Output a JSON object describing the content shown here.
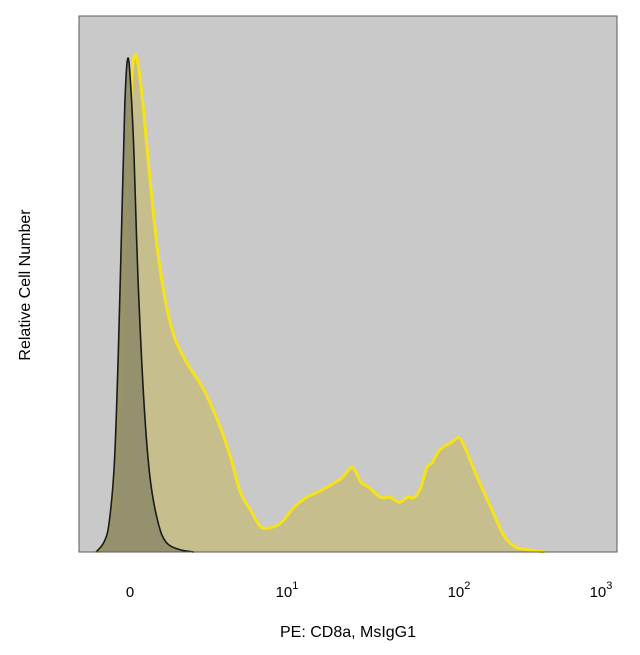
{
  "chart_data": {
    "type": "area",
    "xlabel": "PE: CD8a, MsIgG1",
    "ylabel": "Relative Cell Number",
    "x_scale": "biexponential (linear near 0, log above)",
    "x_ticks": [
      {
        "value": 0,
        "base": "0",
        "exp": ""
      },
      {
        "value": 10,
        "base": "10",
        "exp": "1"
      },
      {
        "value": 100,
        "base": "10",
        "exp": "2"
      },
      {
        "value": 1000,
        "base": "10",
        "exp": "3"
      }
    ],
    "xlim": [
      -1.5,
      1000
    ],
    "ylim": [
      0,
      100
    ],
    "grid": false,
    "legend": "none",
    "background_color": "#c9c9c9",
    "series": [
      {
        "color_line": "#1a1a1a",
        "color_fill": "#8f8c6a",
        "x": [
          -1.3,
          -1.0,
          -0.8,
          -0.6,
          -0.45,
          -0.3,
          -0.2,
          -0.1,
          0.0,
          0.1,
          0.2,
          0.35,
          0.5,
          0.7,
          0.9,
          1.2,
          1.6
        ],
        "y": [
          0,
          2,
          6,
          18,
          40,
          70,
          90,
          99,
          96,
          80,
          55,
          30,
          15,
          6,
          2,
          0.5,
          0
        ]
      },
      {
        "color_line": "#f5e21a",
        "color_fill": "#c6bd82",
        "x": [
          -1.3,
          -1.0,
          -0.8,
          -0.55,
          -0.35,
          -0.2,
          -0.05,
          0.05,
          0.15,
          0.3,
          0.5,
          0.7,
          0.9,
          1.1,
          1.4,
          1.8,
          2.2,
          2.7,
          3.3,
          4.0,
          5.0,
          6.0,
          7.5,
          9.0,
          11,
          13,
          15,
          17,
          19,
          21,
          24,
          27,
          30,
          35,
          40,
          45,
          50,
          55,
          60,
          65,
          70,
          75,
          80,
          90,
          100,
          110,
          130,
          150,
          180,
          210,
          250,
          300,
          400
        ],
        "y": [
          0,
          1,
          5,
          15,
          35,
          62,
          80,
          96,
          100,
          92,
          75,
          60,
          50,
          43,
          38,
          34,
          30,
          25,
          19,
          12,
          8,
          5,
          5,
          6,
          9,
          11,
          12,
          13,
          14,
          15,
          17,
          14,
          13,
          11,
          11,
          10,
          11,
          11,
          13,
          17,
          18,
          20,
          21,
          22,
          23,
          21,
          16,
          12,
          7,
          3,
          1,
          0.5,
          0
        ]
      }
    ]
  }
}
